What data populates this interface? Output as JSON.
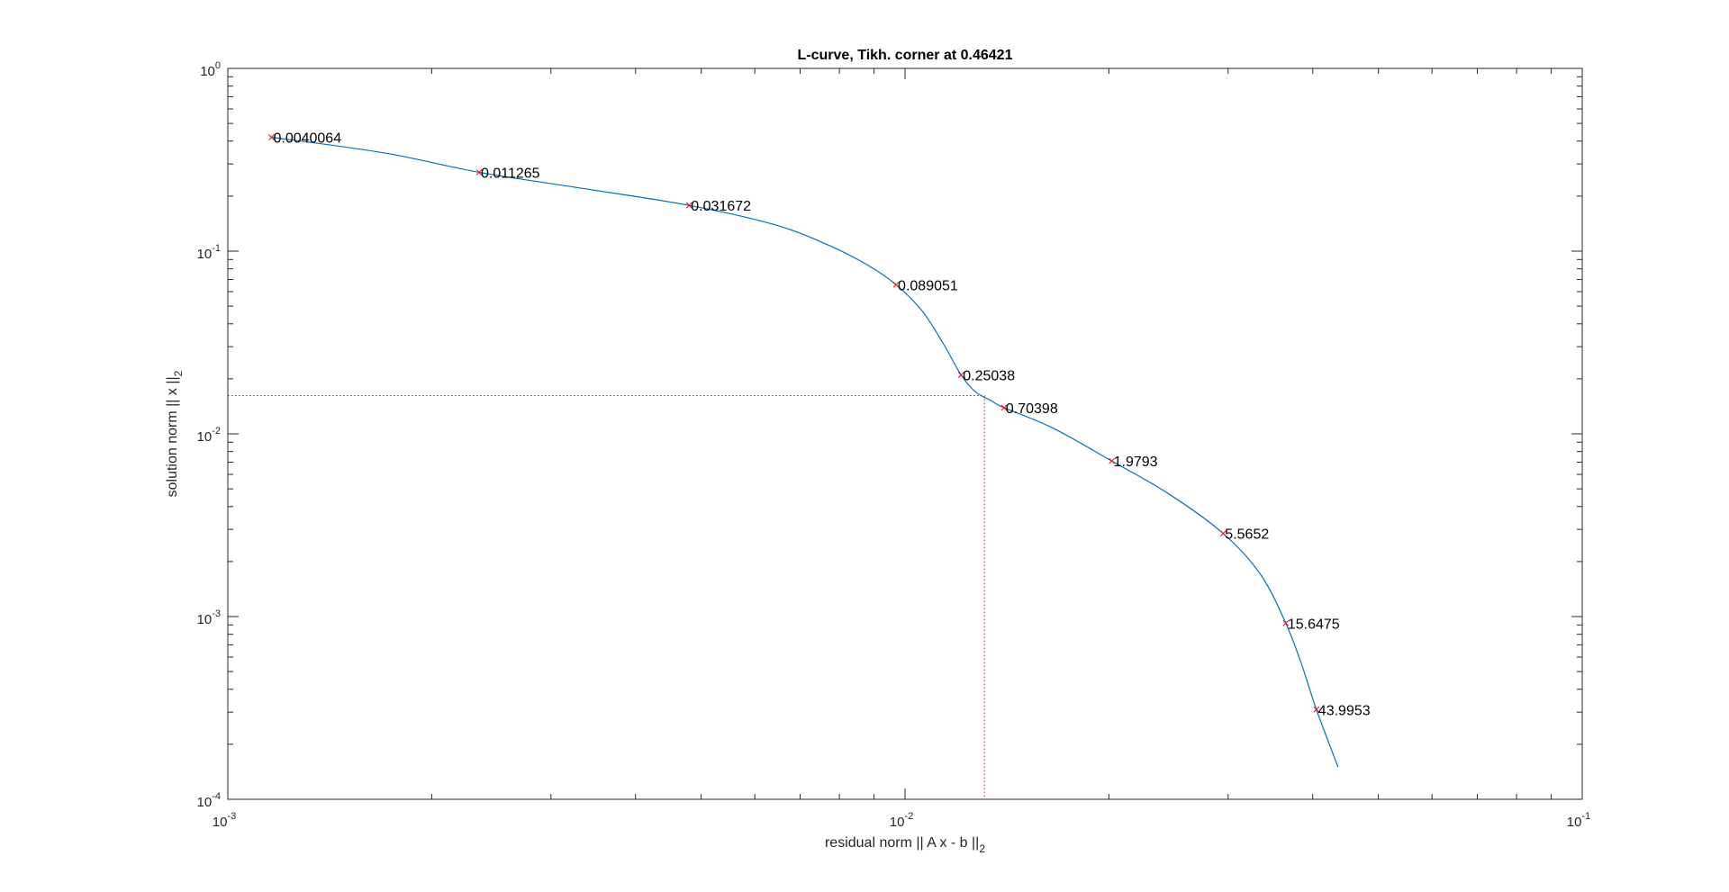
{
  "chart_data": {
    "type": "line",
    "title": "L-curve, Tikh. corner at 0.46421",
    "xlabel": "residual norm || A x - b ||",
    "xlabel_subscript": "2",
    "ylabel": "solution norm || x ||",
    "ylabel_subscript": "2",
    "xscale": "log",
    "yscale": "log",
    "xlim": [
      0.001,
      0.1
    ],
    "ylim": [
      0.0001,
      1
    ],
    "x_ticks": [
      {
        "value": 0.001,
        "base": "10",
        "exp": "-3"
      },
      {
        "value": 0.01,
        "base": "10",
        "exp": "-2"
      },
      {
        "value": 0.1,
        "base": "10",
        "exp": "-1"
      }
    ],
    "y_ticks": [
      {
        "value": 1,
        "base": "10",
        "exp": "0"
      },
      {
        "value": 0.1,
        "base": "10",
        "exp": "-1"
      },
      {
        "value": 0.01,
        "base": "10",
        "exp": "-2"
      },
      {
        "value": 0.001,
        "base": "10",
        "exp": "-3"
      },
      {
        "value": 0.0001,
        "base": "10",
        "exp": "-4"
      }
    ],
    "grid": false,
    "box": true,
    "curve_color": "#0072BD",
    "marker_color": "#FF0000",
    "corner_line_color": "#FF0000",
    "curve": [
      {
        "x": 0.00116,
        "y": 0.42
      },
      {
        "x": 0.0017,
        "y": 0.345
      },
      {
        "x": 0.00235,
        "y": 0.27
      },
      {
        "x": 0.0033,
        "y": 0.222
      },
      {
        "x": 0.0048,
        "y": 0.178
      },
      {
        "x": 0.0064,
        "y": 0.14
      },
      {
        "x": 0.0077,
        "y": 0.108
      },
      {
        "x": 0.0088,
        "y": 0.084
      },
      {
        "x": 0.0097,
        "y": 0.0655
      },
      {
        "x": 0.0106,
        "y": 0.047
      },
      {
        "x": 0.0114,
        "y": 0.031
      },
      {
        "x": 0.0121,
        "y": 0.021
      },
      {
        "x": 0.0127,
        "y": 0.017
      },
      {
        "x": 0.0134,
        "y": 0.0152
      },
      {
        "x": 0.014,
        "y": 0.0139
      },
      {
        "x": 0.0165,
        "y": 0.0108
      },
      {
        "x": 0.0202,
        "y": 0.0071
      },
      {
        "x": 0.0245,
        "y": 0.0047
      },
      {
        "x": 0.0295,
        "y": 0.00285
      },
      {
        "x": 0.0335,
        "y": 0.0017
      },
      {
        "x": 0.0365,
        "y": 0.00092
      },
      {
        "x": 0.0385,
        "y": 0.00055
      },
      {
        "x": 0.0405,
        "y": 0.00031
      },
      {
        "x": 0.0436,
        "y": 0.00015
      }
    ],
    "markers": [
      {
        "x": 0.00116,
        "y": 0.42,
        "label": "0.0040064"
      },
      {
        "x": 0.00235,
        "y": 0.27,
        "label": "0.011265"
      },
      {
        "x": 0.0048,
        "y": 0.178,
        "label": "0.031672"
      },
      {
        "x": 0.0097,
        "y": 0.0655,
        "label": "0.089051"
      },
      {
        "x": 0.0121,
        "y": 0.021,
        "label": "0.25038"
      },
      {
        "x": 0.014,
        "y": 0.0139,
        "label": "0.70398"
      },
      {
        "x": 0.0202,
        "y": 0.0071,
        "label": "1.9793"
      },
      {
        "x": 0.0295,
        "y": 0.00285,
        "label": "5.5652"
      },
      {
        "x": 0.0365,
        "y": 0.00092,
        "label": "15.6475"
      },
      {
        "x": 0.0405,
        "y": 0.00031,
        "label": "43.9953"
      }
    ],
    "corner": {
      "x": 0.0131,
      "y": 0.0162
    }
  }
}
